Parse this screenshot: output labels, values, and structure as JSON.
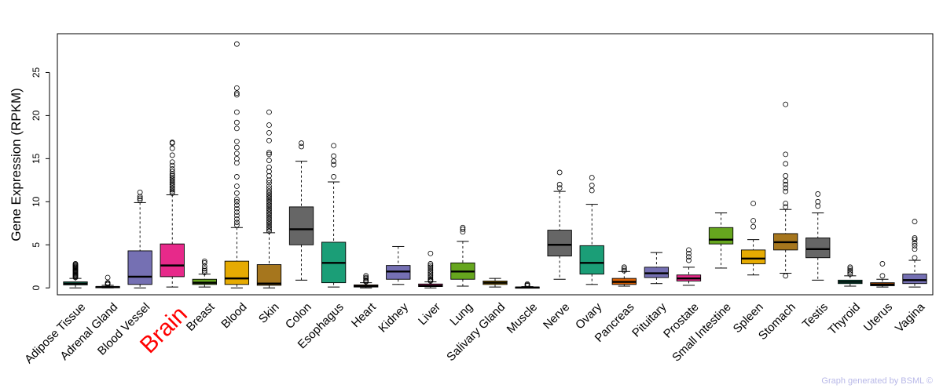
{
  "chart_data": {
    "type": "boxplot",
    "title": "",
    "xlabel": "",
    "ylabel": "Gene Expression (RPKM)",
    "ylim": [
      -0.8,
      29.5
    ],
    "yticks": [
      0,
      5,
      10,
      15,
      20,
      25
    ],
    "highlight": "Brain",
    "credit": "Graph generated by BSML ©",
    "groups": [
      {
        "name": "Adipose Tissue",
        "color": "#1b9e77",
        "lo": 0.0,
        "q1": 0.35,
        "med": 0.5,
        "q3": 0.7,
        "hi": 1.1,
        "outliers": [
          1.2,
          1.3,
          1.4,
          1.5,
          1.6,
          1.7,
          1.8,
          1.9,
          2.0,
          2.1,
          2.2,
          2.3,
          2.4,
          2.5,
          2.6,
          2.7,
          2.8
        ]
      },
      {
        "name": "Adrenal Gland",
        "color": "#d95f02",
        "lo": 0.0,
        "q1": 0.05,
        "med": 0.1,
        "q3": 0.15,
        "hi": 0.3,
        "outliers": [
          0.4,
          0.5,
          0.6,
          1.2
        ]
      },
      {
        "name": "Blood Vessel",
        "color": "#7570b3",
        "lo": 0.0,
        "q1": 0.4,
        "med": 1.3,
        "q3": 4.3,
        "hi": 9.9,
        "outliers": [
          10.2,
          10.4,
          10.6,
          11.1
        ]
      },
      {
        "name": "Brain",
        "color": "#e7298a",
        "lo": 0.1,
        "q1": 1.3,
        "med": 2.6,
        "q3": 5.1,
        "hi": 10.8,
        "outliers": [
          11.0,
          11.2,
          11.4,
          11.6,
          11.8,
          12.0,
          12.2,
          12.4,
          12.6,
          12.8,
          13.0,
          13.2,
          13.5,
          13.8,
          14.2,
          14.6,
          15.4,
          16.2,
          16.8,
          16.9
        ]
      },
      {
        "name": "Breast",
        "color": "#66a61e",
        "lo": 0.1,
        "q1": 0.4,
        "med": 0.6,
        "q3": 1.0,
        "hi": 1.6,
        "outliers": [
          1.8,
          2.0,
          2.2,
          2.5,
          2.9,
          3.1
        ]
      },
      {
        "name": "Blood",
        "color": "#e6ab02",
        "lo": 0.0,
        "q1": 0.4,
        "med": 1.1,
        "q3": 3.1,
        "hi": 7.0,
        "outliers": [
          7.3,
          7.6,
          8.0,
          8.4,
          8.8,
          9.2,
          9.6,
          10.0,
          10.3,
          11.0,
          11.8,
          12.9,
          14.5,
          15.0,
          15.6,
          16.3,
          17.0,
          18.5,
          19.2,
          20.4,
          22.4,
          22.6,
          23.2,
          28.3
        ]
      },
      {
        "name": "Skin",
        "color": "#a6761d",
        "lo": 0.0,
        "q1": 0.3,
        "med": 0.5,
        "q3": 2.7,
        "hi": 6.4,
        "outliers": [
          6.6,
          6.8,
          7.0,
          7.2,
          7.4,
          7.6,
          7.8,
          8.0,
          8.2,
          8.4,
          8.6,
          8.8,
          9.0,
          9.2,
          9.4,
          9.6,
          9.8,
          10.0,
          10.2,
          10.4,
          10.6,
          10.8,
          11.0,
          11.2,
          11.5,
          11.8,
          12.2,
          12.5,
          13.0,
          13.5,
          14.0,
          14.8,
          15.5,
          15.7,
          17.1,
          18.0,
          18.9,
          20.4
        ]
      },
      {
        "name": "Colon",
        "color": "#666666",
        "lo": 0.9,
        "q1": 5.0,
        "med": 6.8,
        "q3": 9.4,
        "hi": 14.7,
        "outliers": [
          16.4,
          16.8
        ]
      },
      {
        "name": "Esophagus",
        "color": "#1b9e77",
        "lo": 0.1,
        "q1": 0.6,
        "med": 2.9,
        "q3": 5.3,
        "hi": 12.3,
        "outliers": [
          12.9,
          14.3,
          14.7,
          15.3,
          16.5
        ]
      },
      {
        "name": "Heart",
        "color": "#d95f02",
        "lo": 0.0,
        "q1": 0.1,
        "med": 0.2,
        "q3": 0.35,
        "hi": 0.6,
        "outliers": [
          0.7,
          0.8,
          0.9,
          1.1,
          1.2,
          1.4
        ]
      },
      {
        "name": "Kidney",
        "color": "#7570b3",
        "lo": 0.4,
        "q1": 1.0,
        "med": 1.9,
        "q3": 2.6,
        "hi": 4.8,
        "outliers": []
      },
      {
        "name": "Liver",
        "color": "#e7298a",
        "lo": 0.0,
        "q1": 0.15,
        "med": 0.25,
        "q3": 0.45,
        "hi": 0.7,
        "outliers": [
          0.8,
          0.9,
          1.0,
          1.2,
          1.4,
          1.6,
          1.8,
          2.0,
          2.2,
          2.4,
          2.6,
          2.8,
          4.0
        ]
      },
      {
        "name": "Lung",
        "color": "#66a61e",
        "lo": 0.2,
        "q1": 1.0,
        "med": 1.9,
        "q3": 2.9,
        "hi": 5.4,
        "outliers": [
          6.5,
          6.8,
          7.0
        ]
      },
      {
        "name": "Salivary Gland",
        "color": "#e6ab02",
        "lo": 0.1,
        "q1": 0.4,
        "med": 0.6,
        "q3": 0.8,
        "hi": 1.1,
        "outliers": []
      },
      {
        "name": "Muscle",
        "color": "#a6761d",
        "lo": 0.0,
        "q1": 0.02,
        "med": 0.05,
        "q3": 0.1,
        "hi": 0.15,
        "outliers": [
          0.25,
          0.35,
          0.45
        ]
      },
      {
        "name": "Nerve",
        "color": "#666666",
        "lo": 1.0,
        "q1": 3.7,
        "med": 5.0,
        "q3": 6.7,
        "hi": 11.2,
        "outliers": [
          11.6,
          12.0,
          13.4
        ]
      },
      {
        "name": "Ovary",
        "color": "#1b9e77",
        "lo": 0.4,
        "q1": 1.6,
        "med": 2.9,
        "q3": 4.9,
        "hi": 9.7,
        "outliers": [
          11.3,
          11.9,
          12.8
        ]
      },
      {
        "name": "Pancreas",
        "color": "#d95f02",
        "lo": 0.2,
        "q1": 0.4,
        "med": 0.7,
        "q3": 1.1,
        "hi": 1.9,
        "outliers": [
          2.0,
          2.2,
          2.4
        ]
      },
      {
        "name": "Pituitary",
        "color": "#7570b3",
        "lo": 0.5,
        "q1": 1.2,
        "med": 1.7,
        "q3": 2.4,
        "hi": 4.1,
        "outliers": []
      },
      {
        "name": "Prostate",
        "color": "#e7298a",
        "lo": 0.3,
        "q1": 0.8,
        "med": 1.1,
        "q3": 1.5,
        "hi": 2.4,
        "outliers": [
          3.2,
          3.6,
          4.0,
          4.4
        ]
      },
      {
        "name": "Small Intestine",
        "color": "#66a61e",
        "lo": 2.3,
        "q1": 5.1,
        "med": 5.6,
        "q3": 7.0,
        "hi": 8.7,
        "outliers": []
      },
      {
        "name": "Spleen",
        "color": "#e6ab02",
        "lo": 1.5,
        "q1": 2.8,
        "med": 3.4,
        "q3": 4.4,
        "hi": 5.6,
        "outliers": [
          7.1,
          7.8,
          9.8
        ]
      },
      {
        "name": "Stomach",
        "color": "#a6761d",
        "lo": 1.7,
        "q1": 4.4,
        "med": 5.3,
        "q3": 6.3,
        "hi": 9.1,
        "outliers": [
          1.4,
          9.4,
          9.8,
          11.2,
          11.6,
          12.0,
          12.4,
          13.0,
          14.4,
          15.5,
          21.3
        ]
      },
      {
        "name": "Testis",
        "color": "#666666",
        "lo": 0.9,
        "q1": 3.5,
        "med": 4.5,
        "q3": 5.8,
        "hi": 8.7,
        "outliers": [
          9.5,
          10.0,
          10.9
        ]
      },
      {
        "name": "Thyroid",
        "color": "#1b9e77",
        "lo": 0.2,
        "q1": 0.5,
        "med": 0.7,
        "q3": 0.9,
        "hi": 1.4,
        "outliers": [
          1.6,
          1.8,
          2.0,
          2.2,
          2.4
        ]
      },
      {
        "name": "Uterus",
        "color": "#d95f02",
        "lo": 0.1,
        "q1": 0.25,
        "med": 0.4,
        "q3": 0.6,
        "hi": 1.0,
        "outliers": [
          1.4,
          2.8
        ]
      },
      {
        "name": "Vagina",
        "color": "#7570b3",
        "lo": 0.1,
        "q1": 0.5,
        "med": 0.9,
        "q3": 1.6,
        "hi": 3.2,
        "outliers": [
          3.5,
          4.5,
          4.9,
          5.2,
          5.6,
          5.8,
          7.7
        ]
      }
    ]
  }
}
